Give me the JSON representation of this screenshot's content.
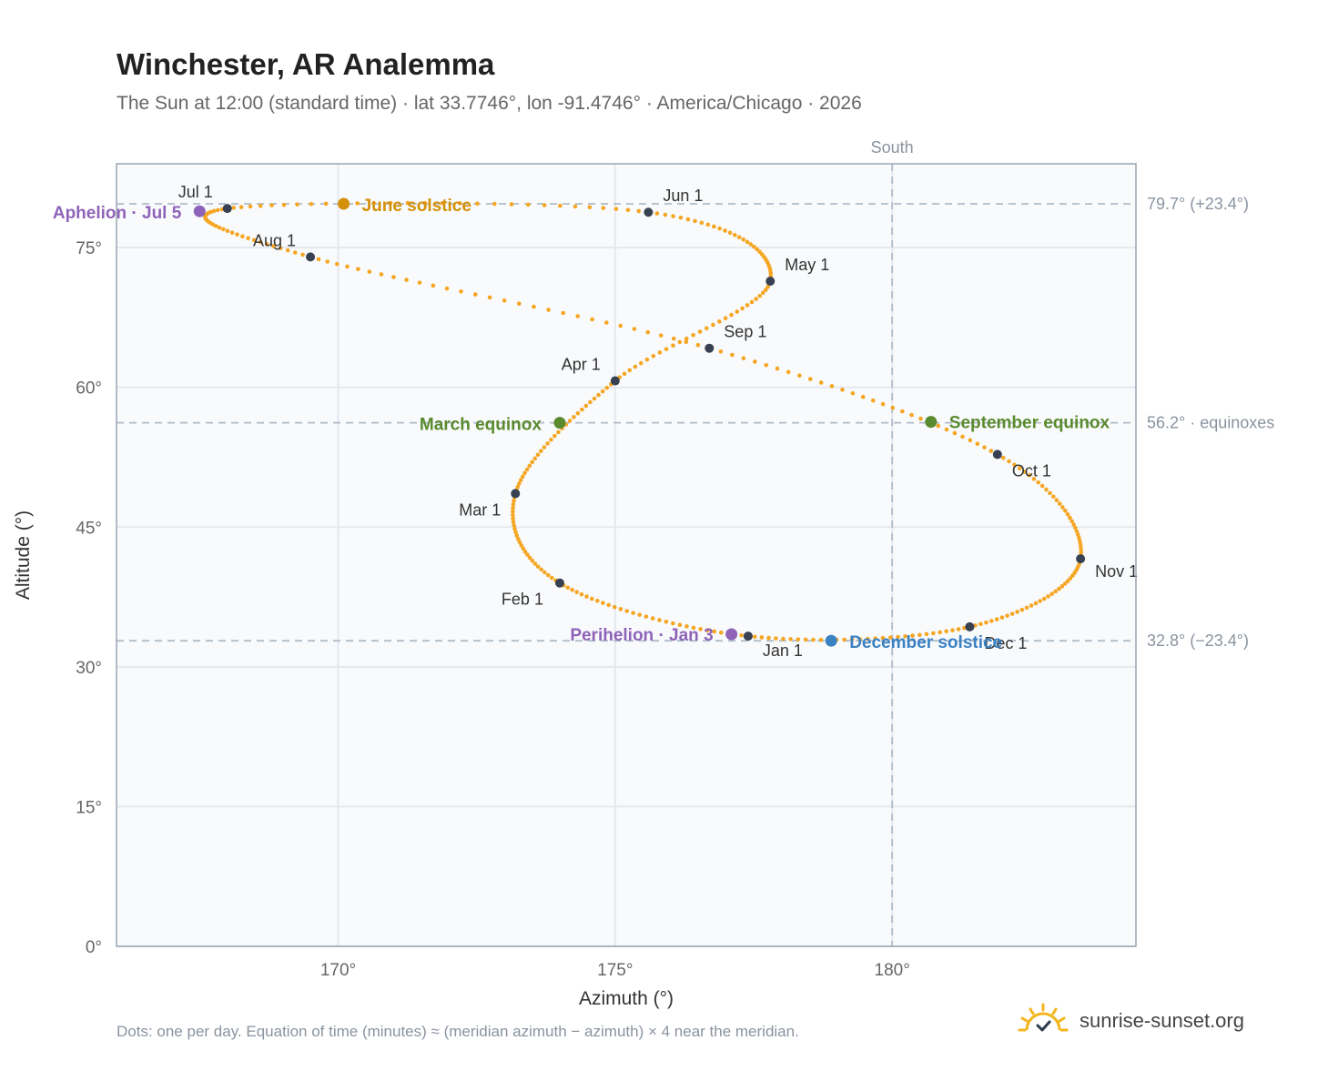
{
  "title": "Winchester, AR Analemma",
  "subtitle": "The Sun at 12:00 (standard time) · lat 33.7746°, lon -91.4746° · America/Chicago · 2026",
  "footnote": "Dots: one per day. Equation of time (minutes) ≈ (meridian azimuth − azimuth) × 4 near the meridian.",
  "brand": {
    "name": "sunrise-sunset.org",
    "icon": "sun-horizon-icon"
  },
  "colors": {
    "curve": "#f5a623",
    "month_dot": "#374151",
    "june_solstice": "#d4900a",
    "december_solstice": "#3b82c4",
    "equinox": "#5a8a2e",
    "apsis": "#8e63b8",
    "grid": "#e5e9ef",
    "plot_bg": "#f8fafc",
    "frame": "#9aa5b4",
    "reference_line": "#b0bcc8",
    "axis_text": "#666666"
  },
  "chart_data": {
    "type": "scatter",
    "xlabel": "Azimuth (°)",
    "ylabel": "Altitude (°)",
    "xlim": [
      166.0,
      184.4
    ],
    "ylim": [
      0,
      84
    ],
    "x_ticks": [
      170,
      175,
      180
    ],
    "x_tick_labels": [
      "170°",
      "175°",
      "180°"
    ],
    "y_ticks": [
      0,
      15,
      30,
      45,
      60,
      75
    ],
    "y_tick_labels": [
      "0°",
      "15°",
      "30°",
      "45°",
      "60°",
      "75°"
    ],
    "grid": true,
    "meridian": {
      "azimuth": 180,
      "label": "South"
    },
    "reference_lines": [
      {
        "altitude": 79.7,
        "label": "79.7° (+23.4°)"
      },
      {
        "altitude": 56.2,
        "label": "56.2° · equinoxes"
      },
      {
        "altitude": 32.8,
        "label": "32.8° (−23.4°)"
      }
    ],
    "series": [
      {
        "kind": "daily",
        "points": [
          {
            "date": "Jan 1",
            "az": 177.4,
            "alt": 33.3
          },
          {
            "date": "Feb 1",
            "az": 174.0,
            "alt": 39.0
          },
          {
            "date": "Mar 1",
            "az": 173.2,
            "alt": 48.6
          },
          {
            "date": "Apr 1",
            "az": 175.0,
            "alt": 60.7
          },
          {
            "date": "May 1",
            "az": 177.8,
            "alt": 71.4
          },
          {
            "date": "Jun 1",
            "az": 175.6,
            "alt": 78.8
          },
          {
            "date": "Jul 1",
            "az": 168.0,
            "alt": 79.2
          },
          {
            "date": "Aug 1",
            "az": 169.5,
            "alt": 74.0
          },
          {
            "date": "Sep 1",
            "az": 176.7,
            "alt": 64.2
          },
          {
            "date": "Oct 1",
            "az": 181.9,
            "alt": 52.8
          },
          {
            "date": "Nov 1",
            "az": 183.4,
            "alt": 41.6
          },
          {
            "date": "Dec 1",
            "az": 181.4,
            "alt": 34.3
          },
          {
            "date": "Jan 1",
            "az": 177.4,
            "alt": 33.3
          }
        ]
      }
    ],
    "month_markers": [
      {
        "label": "Jan 1",
        "az": 177.4,
        "alt": 33.3
      },
      {
        "label": "Feb 1",
        "az": 174.0,
        "alt": 39.0
      },
      {
        "label": "Mar 1",
        "az": 173.2,
        "alt": 48.6
      },
      {
        "label": "Apr 1",
        "az": 175.0,
        "alt": 60.7
      },
      {
        "label": "May 1",
        "az": 177.8,
        "alt": 71.4
      },
      {
        "label": "Jun 1",
        "az": 175.6,
        "alt": 78.8
      },
      {
        "label": "Jul 1",
        "az": 168.0,
        "alt": 79.2
      },
      {
        "label": "Aug 1",
        "az": 169.5,
        "alt": 74.0
      },
      {
        "label": "Sep 1",
        "az": 176.7,
        "alt": 64.2
      },
      {
        "label": "Oct 1",
        "az": 181.9,
        "alt": 52.8
      },
      {
        "label": "Nov 1",
        "az": 183.4,
        "alt": 41.6
      },
      {
        "label": "Dec 1",
        "az": 181.4,
        "alt": 34.3
      }
    ],
    "events": [
      {
        "label": "June solstice",
        "az": 170.1,
        "alt": 79.7,
        "color_key": "june_solstice"
      },
      {
        "label": "Aphelion · Jul 5",
        "az": 167.5,
        "alt": 78.9,
        "color_key": "apsis"
      },
      {
        "label": "March equinox",
        "az": 174.0,
        "alt": 56.2,
        "color_key": "equinox"
      },
      {
        "label": "September equinox",
        "az": 180.7,
        "alt": 56.3,
        "color_key": "equinox"
      },
      {
        "label": "December solstice",
        "az": 178.9,
        "alt": 32.8,
        "color_key": "december_solstice"
      },
      {
        "label": "Perihelion · Jan 3",
        "az": 177.1,
        "alt": 33.5,
        "color_key": "apsis"
      }
    ]
  }
}
